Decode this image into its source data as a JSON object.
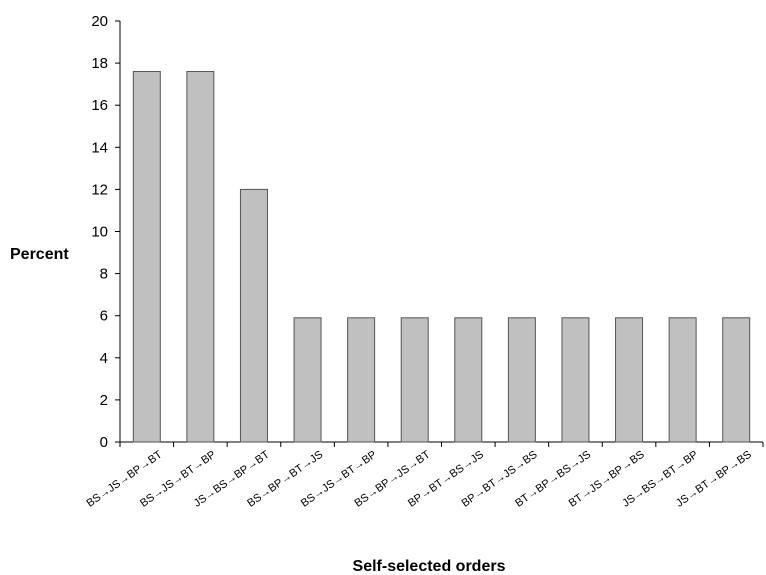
{
  "chart_data": {
    "type": "bar",
    "title": "",
    "xlabel": "Self-selected orders",
    "ylabel": "Percent",
    "ylim": [
      0,
      20
    ],
    "yticks": [
      0,
      2,
      4,
      6,
      8,
      10,
      12,
      14,
      16,
      18,
      20
    ],
    "grid": false,
    "legend": "none",
    "colors": {
      "bar_fill": "#c0c0c0",
      "bar_stroke": "#555555",
      "axis": "#000000"
    },
    "categories": [
      "BS→JS→BP→BT",
      "BS→JS→BT→BP",
      "JS→BS→BP→BT",
      "BS→BP→BT→JS",
      "BS→JS→BT→BP",
      "BS→BP→JS→BT",
      "BP→BT→BS→JS",
      "BP→BT→JS→BS",
      "BT→BP→BS→JS",
      "BT→JS→BP→BS",
      "JS→BS→BT→BP",
      "JS→BT→BP→BS"
    ],
    "values": [
      17.6,
      17.6,
      12.0,
      5.9,
      5.9,
      5.9,
      5.9,
      5.9,
      5.9,
      5.9,
      5.9,
      5.9
    ]
  }
}
